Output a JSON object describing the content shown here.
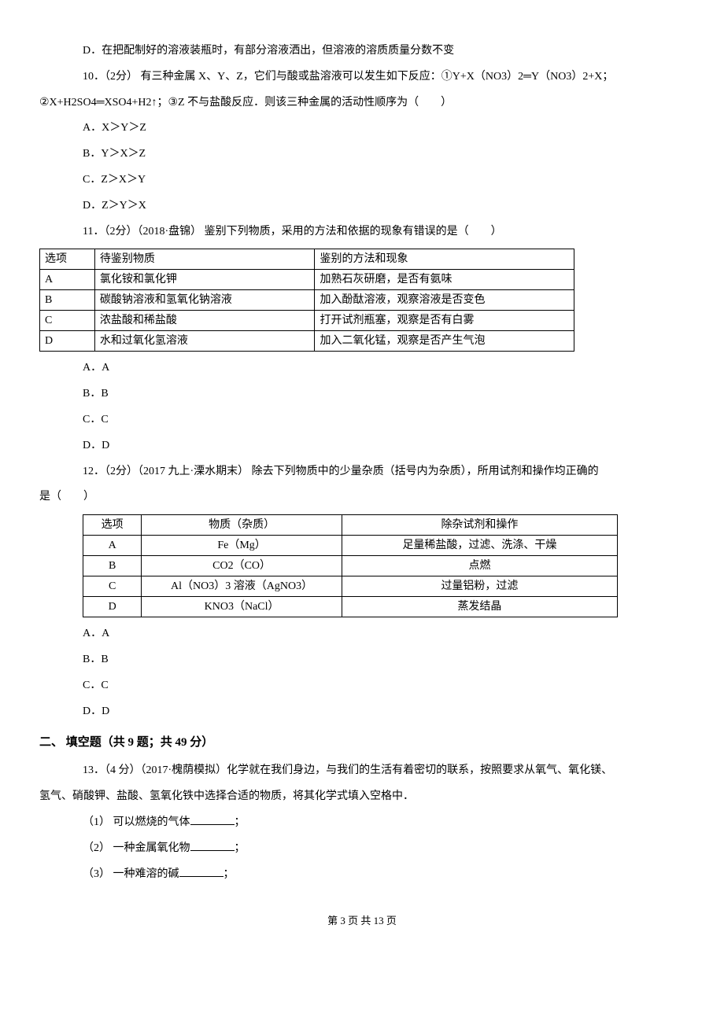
{
  "q9": {
    "optD": "D．在把配制好的溶液装瓶时，有部分溶液洒出，但溶液的溶质质量分数不变"
  },
  "q10": {
    "stem1": "10．（2分） 有三种金属 X、Y、Z，它们与酸或盐溶液可以发生如下反应：①Y+X（NO3）2═Y（NO3）2+X；",
    "stem2": "②X+H2SO4═XSO4+H2↑；③Z 不与盐酸反应．则该三种金属的活动性顺序为（　　）",
    "optA": "A．X＞Y＞Z",
    "optB": "B．Y＞X＞Z",
    "optC": "C．Z＞X＞Y",
    "optD": "D．Z＞Y＞X"
  },
  "q11": {
    "stem": "11．（2分）（2018·盘锦） 鉴别下列物质，采用的方法和依据的现象有错误的是（　　）",
    "table": {
      "header": [
        "选项",
        "待鉴别物质",
        "鉴别的方法和现象"
      ],
      "rows": [
        [
          "A",
          "氯化铵和氯化钾",
          "加熟石灰研磨，是否有氨味"
        ],
        [
          "B",
          "碳酸钠溶液和氢氧化钠溶液",
          "加入酚酞溶液，观察溶液是否变色"
        ],
        [
          "C",
          "浓盐酸和稀盐酸",
          "打开试剂瓶塞，观察是否有白雾"
        ],
        [
          "D",
          "水和过氧化氢溶液",
          "加入二氧化锰，观察是否产生气泡"
        ]
      ]
    },
    "optA": "A．A",
    "optB": "B．B",
    "optC": "C．C",
    "optD": "D．D"
  },
  "q12": {
    "stem1": "12．（2分）（2017 九上·溧水期末） 除去下列物质中的少量杂质（括号内为杂质），所用试剂和操作均正确的",
    "stem2": "是（　　）",
    "table": {
      "header": [
        "选项",
        "物质（杂质）",
        "除杂试剂和操作"
      ],
      "rows": [
        [
          "A",
          "Fe（Mg）",
          "足量稀盐酸，过滤、洗涤、干燥"
        ],
        [
          "B",
          "CO2（CO）",
          "点燃"
        ],
        [
          "C",
          "Al（NO3）3 溶液（AgNO3）",
          "过量铝粉，过滤"
        ],
        [
          "D",
          "KNO3（NaCl）",
          "蒸发结晶"
        ]
      ]
    },
    "optA": "A．A",
    "optB": "B．B",
    "optC": "C．C",
    "optD": "D．D"
  },
  "section2": {
    "heading": "二、 填空题（共 9 题；共 49 分）"
  },
  "q13": {
    "stem1": "13．（4 分）（2017·槐荫模拟）化学就在我们身边，与我们的生活有着密切的联系，按照要求从氧气、氧化镁、",
    "stem2": "氢气、硝酸钾、盐酸、氢氧化铁中选择合适的物质，将其化学式填入空格中．",
    "sub1_prefix": "（1） 可以燃烧的气体",
    "sub1_suffix": "；",
    "sub2_prefix": "（2） 一种金属氧化物",
    "sub2_suffix": "；",
    "sub3_prefix": "（3） 一种难溶的碱",
    "sub3_suffix": "；"
  },
  "footer": "第 3 页 共 13 页"
}
